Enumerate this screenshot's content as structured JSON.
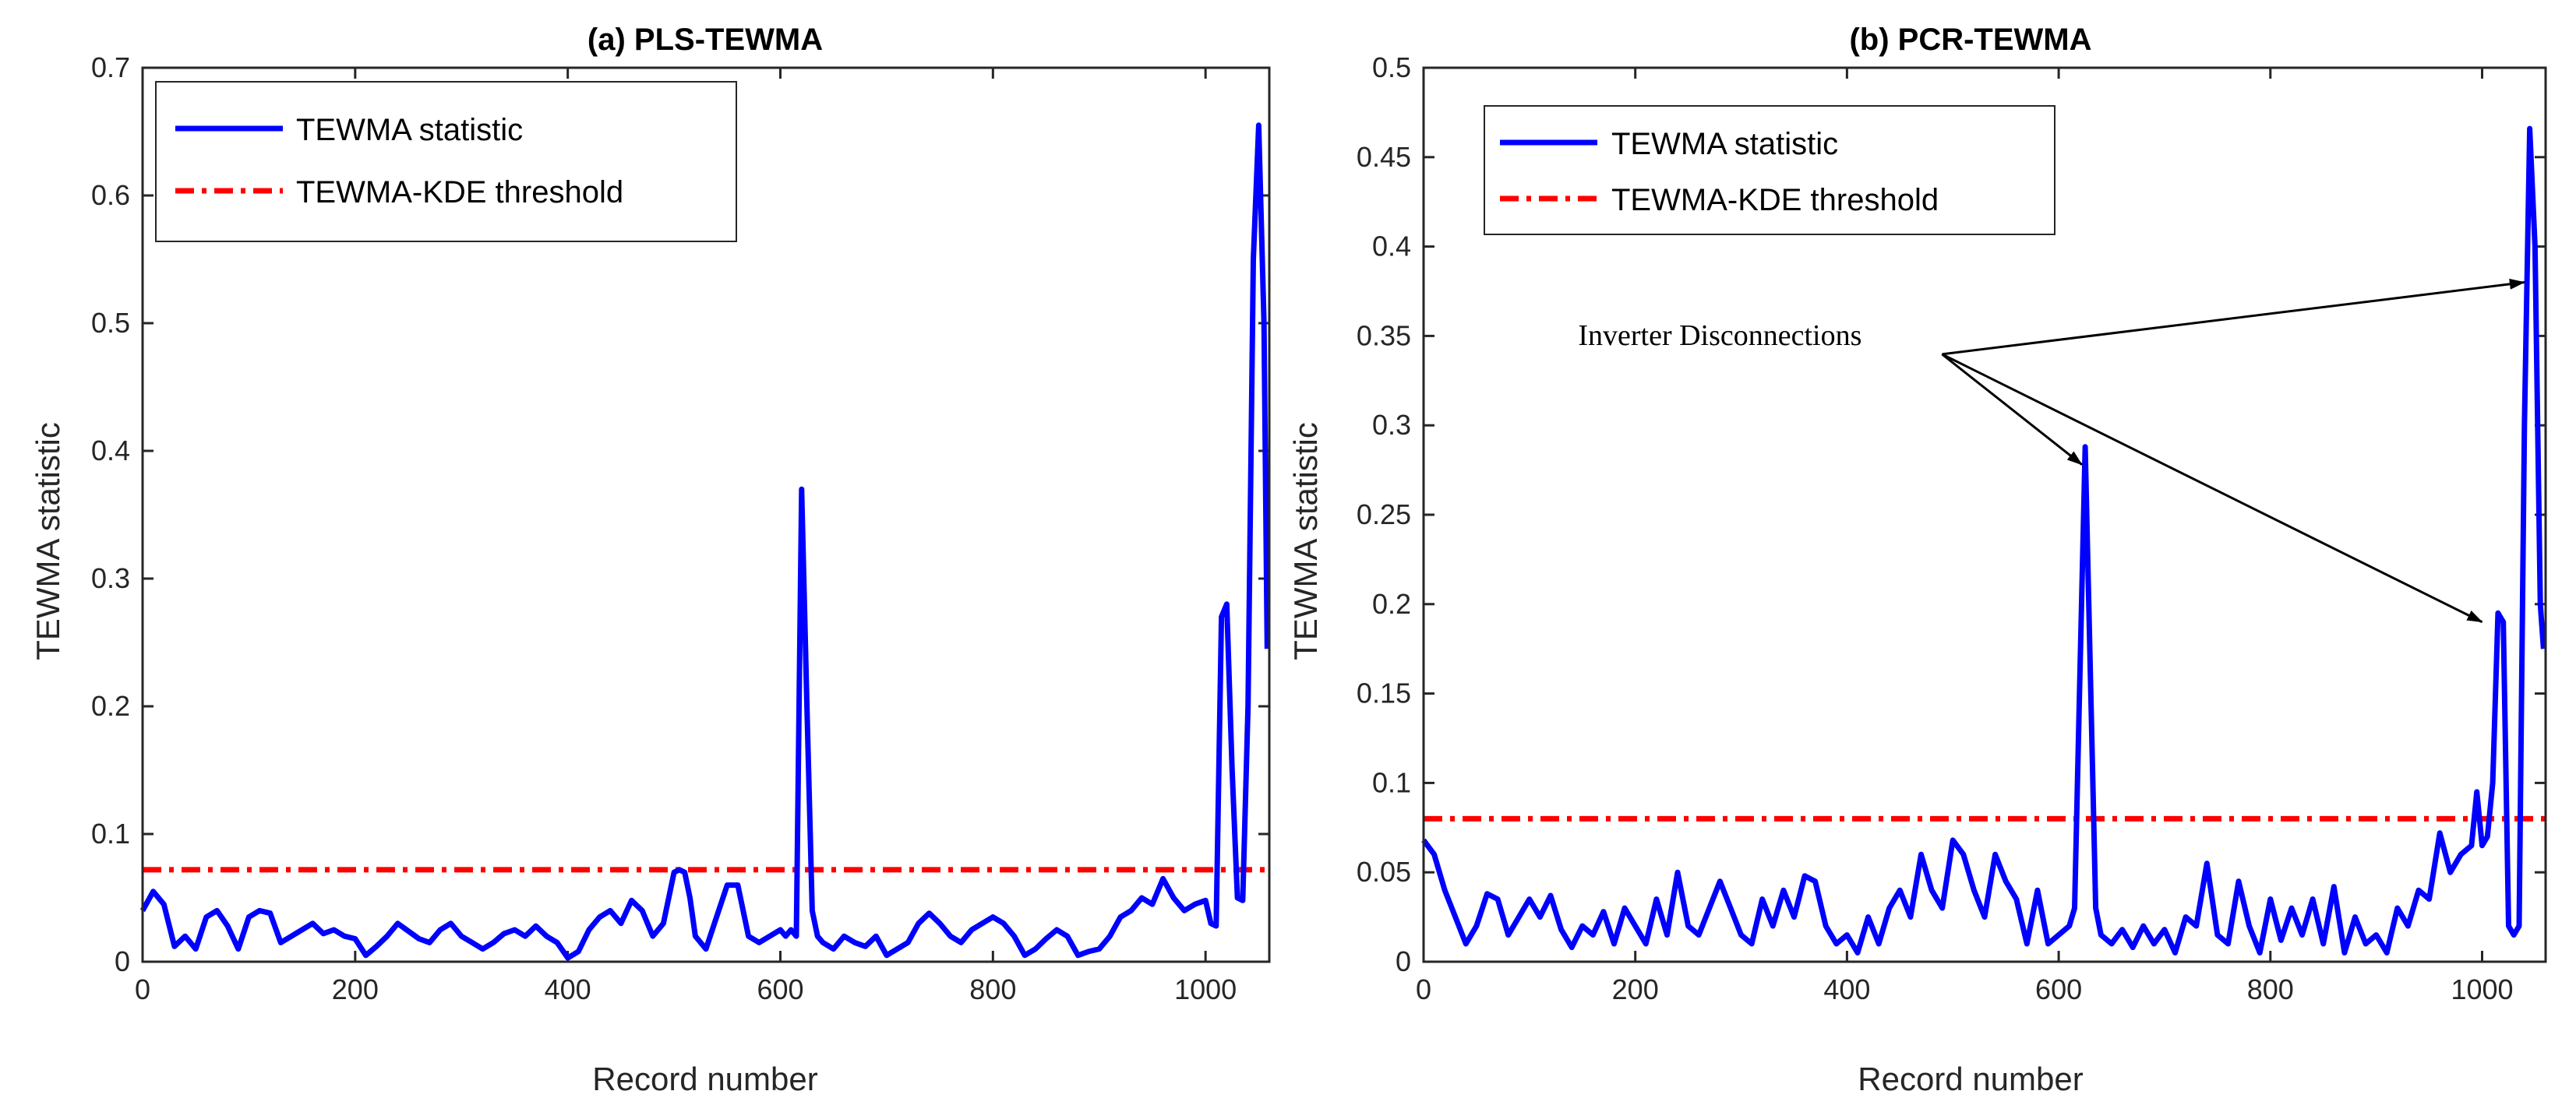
{
  "chart_data": [
    {
      "type": "line",
      "title": "(a) PLS-TEWMA",
      "xlabel": "Record number",
      "ylabel": "TEWMA statistic",
      "xlim": [
        0,
        1060
      ],
      "ylim": [
        0,
        0.7
      ],
      "xticks": [
        0,
        200,
        400,
        600,
        800,
        1000
      ],
      "xtick_labels": [
        "0",
        "200",
        "400",
        "600",
        "800",
        "1000"
      ],
      "yticks": [
        0,
        0.1,
        0.2,
        0.3,
        0.4,
        0.5,
        0.6,
        0.7
      ],
      "ytick_labels": [
        "0",
        "0.1",
        "0.2",
        "0.3",
        "0.4",
        "0.5",
        "0.6",
        "0.7"
      ],
      "legend": {
        "placement": "top-left",
        "entries": [
          "TEWMA statistic",
          "TEWMA-KDE threshold"
        ]
      },
      "threshold": 0.072,
      "series": [
        {
          "name": "TEWMA statistic",
          "color": "#0000ff",
          "x": [
            0,
            10,
            20,
            30,
            40,
            50,
            60,
            70,
            80,
            90,
            100,
            110,
            120,
            130,
            140,
            150,
            160,
            170,
            180,
            190,
            200,
            210,
            220,
            230,
            240,
            250,
            260,
            270,
            280,
            290,
            300,
            310,
            320,
            330,
            340,
            350,
            360,
            370,
            380,
            390,
            400,
            410,
            420,
            430,
            440,
            450,
            460,
            470,
            480,
            490,
            500,
            505,
            510,
            515,
            520,
            530,
            540,
            550,
            560,
            570,
            580,
            590,
            600,
            605,
            610,
            615,
            620,
            625,
            630,
            635,
            640,
            650,
            660,
            670,
            680,
            690,
            700,
            710,
            720,
            730,
            740,
            750,
            760,
            770,
            780,
            790,
            800,
            810,
            820,
            830,
            840,
            850,
            860,
            870,
            880,
            890,
            900,
            910,
            920,
            930,
            940,
            950,
            960,
            970,
            980,
            990,
            1000,
            1005,
            1010,
            1015,
            1020,
            1025,
            1030,
            1035,
            1040,
            1045,
            1050,
            1055,
            1058
          ],
          "y": [
            0.04,
            0.055,
            0.045,
            0.012,
            0.02,
            0.01,
            0.035,
            0.04,
            0.028,
            0.01,
            0.035,
            0.04,
            0.038,
            0.015,
            0.02,
            0.025,
            0.03,
            0.022,
            0.025,
            0.02,
            0.018,
            0.005,
            0.012,
            0.02,
            0.03,
            0.024,
            0.018,
            0.015,
            0.025,
            0.03,
            0.02,
            0.015,
            0.01,
            0.015,
            0.022,
            0.025,
            0.02,
            0.028,
            0.02,
            0.015,
            0.003,
            0.008,
            0.025,
            0.035,
            0.04,
            0.03,
            0.048,
            0.04,
            0.02,
            0.03,
            0.07,
            0.072,
            0.07,
            0.05,
            0.02,
            0.01,
            0.035,
            0.06,
            0.06,
            0.02,
            0.015,
            0.02,
            0.025,
            0.02,
            0.025,
            0.02,
            0.37,
            0.2,
            0.04,
            0.02,
            0.015,
            0.01,
            0.02,
            0.015,
            0.012,
            0.02,
            0.005,
            0.01,
            0.015,
            0.03,
            0.038,
            0.03,
            0.02,
            0.015,
            0.025,
            0.03,
            0.035,
            0.03,
            0.02,
            0.005,
            0.01,
            0.018,
            0.025,
            0.02,
            0.005,
            0.008,
            0.01,
            0.02,
            0.035,
            0.04,
            0.05,
            0.045,
            0.065,
            0.05,
            0.04,
            0.045,
            0.048,
            0.03,
            0.028,
            0.27,
            0.28,
            0.15,
            0.05,
            0.048,
            0.2,
            0.55,
            0.655,
            0.5,
            0.245
          ]
        }
      ]
    },
    {
      "type": "line",
      "title": "(b) PCR-TEWMA",
      "xlabel": "Record number",
      "ylabel": "TEWMA statistic",
      "xlim": [
        0,
        1060
      ],
      "ylim": [
        0,
        0.5
      ],
      "xticks": [
        0,
        200,
        400,
        600,
        800,
        1000
      ],
      "xtick_labels": [
        "0",
        "200",
        "400",
        "600",
        "800",
        "1000"
      ],
      "yticks": [
        0,
        0.05,
        0.1,
        0.15,
        0.2,
        0.25,
        0.3,
        0.35,
        0.4,
        0.45,
        0.5
      ],
      "ytick_labels": [
        "0",
        "0.05",
        "0.1",
        "0.15",
        "0.2",
        "0.25",
        "0.3",
        "0.35",
        "0.4",
        "0.45",
        "0.5"
      ],
      "legend": {
        "placement": "top-left",
        "entries": [
          "TEWMA statistic",
          "TEWMA-KDE threshold"
        ]
      },
      "threshold": 0.08,
      "annotation": {
        "text": "Inverter Disconnections",
        "data_x": 280,
        "data_y": 0.345,
        "targets": [
          [
            622,
            0.278
          ],
          [
            1000,
            0.19
          ],
          [
            1040,
            0.38
          ]
        ]
      },
      "series": [
        {
          "name": "TEWMA statistic",
          "color": "#0000ff",
          "x": [
            0,
            10,
            20,
            30,
            40,
            50,
            60,
            70,
            80,
            90,
            100,
            110,
            120,
            130,
            140,
            150,
            160,
            170,
            180,
            190,
            200,
            210,
            220,
            230,
            240,
            250,
            260,
            270,
            280,
            290,
            300,
            310,
            320,
            330,
            340,
            350,
            360,
            370,
            380,
            390,
            400,
            410,
            420,
            430,
            440,
            450,
            460,
            470,
            480,
            490,
            500,
            510,
            520,
            530,
            540,
            550,
            560,
            570,
            580,
            590,
            600,
            610,
            615,
            620,
            625,
            630,
            635,
            640,
            650,
            660,
            670,
            680,
            690,
            700,
            710,
            720,
            730,
            740,
            750,
            760,
            770,
            780,
            790,
            800,
            810,
            820,
            830,
            840,
            850,
            860,
            870,
            880,
            890,
            900,
            910,
            920,
            930,
            940,
            950,
            960,
            970,
            980,
            990,
            995,
            1000,
            1005,
            1010,
            1015,
            1020,
            1025,
            1030,
            1035,
            1040,
            1045,
            1050,
            1055,
            1058
          ],
          "y": [
            0.068,
            0.06,
            0.04,
            0.025,
            0.01,
            0.02,
            0.038,
            0.035,
            0.015,
            0.025,
            0.035,
            0.025,
            0.037,
            0.018,
            0.008,
            0.02,
            0.015,
            0.028,
            0.01,
            0.03,
            0.02,
            0.01,
            0.035,
            0.015,
            0.05,
            0.02,
            0.015,
            0.03,
            0.045,
            0.03,
            0.015,
            0.01,
            0.035,
            0.02,
            0.04,
            0.025,
            0.048,
            0.045,
            0.02,
            0.01,
            0.015,
            0.005,
            0.025,
            0.01,
            0.03,
            0.04,
            0.025,
            0.06,
            0.04,
            0.03,
            0.068,
            0.06,
            0.04,
            0.025,
            0.06,
            0.045,
            0.035,
            0.01,
            0.04,
            0.01,
            0.015,
            0.02,
            0.03,
            0.16,
            0.288,
            0.16,
            0.03,
            0.015,
            0.01,
            0.018,
            0.008,
            0.02,
            0.01,
            0.018,
            0.005,
            0.025,
            0.02,
            0.055,
            0.015,
            0.01,
            0.045,
            0.02,
            0.005,
            0.035,
            0.012,
            0.03,
            0.015,
            0.035,
            0.01,
            0.042,
            0.005,
            0.025,
            0.01,
            0.015,
            0.005,
            0.03,
            0.02,
            0.04,
            0.035,
            0.072,
            0.05,
            0.06,
            0.065,
            0.095,
            0.065,
            0.07,
            0.1,
            0.195,
            0.19,
            0.02,
            0.015,
            0.02,
            0.3,
            0.466,
            0.4,
            0.2,
            0.175
          ]
        }
      ]
    }
  ],
  "colors": {
    "series": "#0000ff",
    "threshold": "#ff0000",
    "axis": "#262626"
  }
}
